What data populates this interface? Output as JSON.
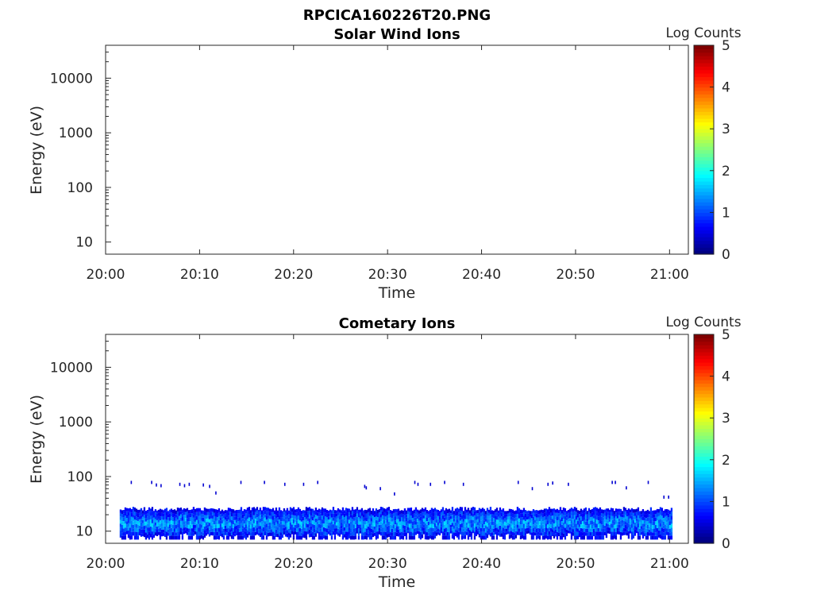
{
  "figure": {
    "filename": "RPCICA160226T20.PNG"
  },
  "chart_data": [
    {
      "type": "heatmap",
      "title": "Solar Wind Ions",
      "xlabel": "Time",
      "ylabel": "Energy (eV)",
      "x_ticks": [
        "20:00",
        "20:10",
        "20:20",
        "20:30",
        "20:40",
        "20:50",
        "21:00"
      ],
      "y_ticks": [
        "10",
        "100",
        "1000",
        "10000"
      ],
      "y_scale": "log",
      "ylim": [
        6,
        40000
      ],
      "xlim": [
        "20:00",
        "21:02"
      ],
      "colorbar": {
        "label": "Log Counts",
        "range": [
          0,
          5
        ],
        "ticks": [
          "0",
          "1",
          "2",
          "3",
          "4",
          "5"
        ],
        "colormap": "jet"
      },
      "data": {
        "description_visible": "empty",
        "occupied_bands": []
      }
    },
    {
      "type": "heatmap",
      "title": "Cometary Ions",
      "xlabel": "Time",
      "ylabel": "Energy (eV)",
      "x_ticks": [
        "20:00",
        "20:10",
        "20:20",
        "20:30",
        "20:40",
        "20:50",
        "21:00"
      ],
      "y_ticks": [
        "10",
        "100",
        "1000",
        "10000"
      ],
      "y_scale": "log",
      "ylim": [
        6,
        40000
      ],
      "xlim": [
        "20:00",
        "21:02"
      ],
      "colorbar": {
        "label": "Log Counts",
        "range": [
          0,
          5
        ],
        "ticks": [
          "0",
          "1",
          "2",
          "3",
          "4",
          "5"
        ],
        "colormap": "jet"
      },
      "data": {
        "occupied_bands": [
          {
            "t_start": "20:01:30",
            "t_end": "21:00:10",
            "energy_min_eV": 7,
            "energy_max_eV": 28,
            "log_counts_min": 0.3,
            "log_counts_max": 1.9
          }
        ],
        "sparse_points": [
          {
            "t": "20:02:40",
            "energy_eV": 78
          },
          {
            "t": "20:04:50",
            "energy_eV": 78
          },
          {
            "t": "20:05:20",
            "energy_eV": 70
          },
          {
            "t": "20:05:50",
            "energy_eV": 68
          },
          {
            "t": "20:07:50",
            "energy_eV": 72
          },
          {
            "t": "20:08:20",
            "energy_eV": 68
          },
          {
            "t": "20:08:50",
            "energy_eV": 72
          },
          {
            "t": "20:10:20",
            "energy_eV": 70
          },
          {
            "t": "20:11:00",
            "energy_eV": 66
          },
          {
            "t": "20:11:40",
            "energy_eV": 50
          },
          {
            "t": "20:14:20",
            "energy_eV": 78
          },
          {
            "t": "20:16:50",
            "energy_eV": 78
          },
          {
            "t": "20:19:00",
            "energy_eV": 72
          },
          {
            "t": "20:21:00",
            "energy_eV": 72
          },
          {
            "t": "20:22:30",
            "energy_eV": 78
          },
          {
            "t": "20:27:30",
            "energy_eV": 66
          },
          {
            "t": "20:27:40",
            "energy_eV": 62
          },
          {
            "t": "20:29:10",
            "energy_eV": 60
          },
          {
            "t": "20:30:40",
            "energy_eV": 48
          },
          {
            "t": "20:32:50",
            "energy_eV": 78
          },
          {
            "t": "20:33:10",
            "energy_eV": 72
          },
          {
            "t": "20:34:30",
            "energy_eV": 72
          },
          {
            "t": "20:36:00",
            "energy_eV": 78
          },
          {
            "t": "20:38:00",
            "energy_eV": 72
          },
          {
            "t": "20:43:50",
            "energy_eV": 78
          },
          {
            "t": "20:45:20",
            "energy_eV": 60
          },
          {
            "t": "20:47:00",
            "energy_eV": 72
          },
          {
            "t": "20:47:30",
            "energy_eV": 76
          },
          {
            "t": "20:49:10",
            "energy_eV": 72
          },
          {
            "t": "20:53:50",
            "energy_eV": 78
          },
          {
            "t": "20:54:10",
            "energy_eV": 78
          },
          {
            "t": "20:55:20",
            "energy_eV": 62
          },
          {
            "t": "20:57:40",
            "energy_eV": 78
          },
          {
            "t": "20:59:20",
            "energy_eV": 42
          },
          {
            "t": "20:59:50",
            "energy_eV": 42
          }
        ]
      }
    }
  ]
}
